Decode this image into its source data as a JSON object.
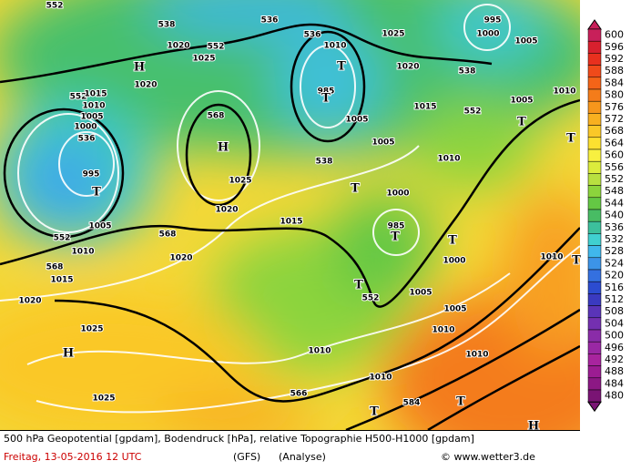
{
  "map": {
    "labels": [
      "552",
      "538",
      "536",
      "536",
      "1025",
      "995",
      "1000",
      "1005",
      "552",
      "1020",
      "1025",
      "H",
      "1020",
      "1020",
      "538",
      "T",
      "1010",
      "552",
      "1015",
      "1010",
      "1005",
      "1000",
      "536",
      "995",
      "T",
      "568",
      "H",
      "1025",
      "1020",
      "1015",
      "985",
      "T",
      "1005",
      "1005",
      "538",
      "T",
      "1000",
      "985",
      "T",
      "T",
      "1005",
      "1010",
      "552",
      "1015",
      "T",
      "T",
      "1010",
      "552",
      "1005",
      "1010",
      "568",
      "1020",
      "568",
      "1015",
      "1020",
      "1000",
      "1010",
      "T",
      "552",
      "T",
      "1005",
      "1005",
      "1010",
      "1025",
      "H",
      "1010",
      "1010",
      "1010",
      "566",
      "584",
      "T",
      "T",
      "1025",
      "H"
    ]
  },
  "legend": {
    "values": [
      600,
      596,
      592,
      588,
      584,
      580,
      576,
      572,
      568,
      564,
      560,
      556,
      552,
      548,
      544,
      540,
      536,
      532,
      528,
      524,
      520,
      516,
      512,
      508,
      504,
      500,
      496,
      492,
      488,
      484,
      480
    ],
    "colors": [
      "#c8205a",
      "#d8202e",
      "#e8301e",
      "#f04a1a",
      "#f46418",
      "#f47c1a",
      "#f6961c",
      "#f8b020",
      "#fac828",
      "#fce030",
      "#f8f040",
      "#dcec3c",
      "#b8e040",
      "#8cd43c",
      "#64c844",
      "#48bc64",
      "#3cc09c",
      "#40d0d0",
      "#40b8ec",
      "#3c94e8",
      "#3470e0",
      "#2c4cd0",
      "#3a3ac0",
      "#5a34b8",
      "#7430b0",
      "#8a2ca8",
      "#9a28a4",
      "#a8249e",
      "#9c1c92",
      "#8c1884",
      "#7a1474"
    ]
  },
  "caption": {
    "line1": "500 hPa Geopotential [gpdam], Bodendruck [hPa], relative Topographie H500-H1000 [gpdam]",
    "date": "Freitag, 13-05-2016  12 UTC",
    "model": "(GFS)",
    "run": "(Analyse)",
    "credit": "© www.wetter3.de"
  }
}
